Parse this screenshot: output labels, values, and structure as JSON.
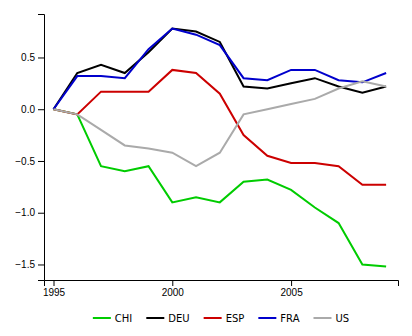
{
  "chart_data": {
    "type": "line",
    "x": [
      1995,
      1996,
      1997,
      1998,
      1999,
      2000,
      2001,
      2002,
      2003,
      2004,
      2005,
      2006,
      2007,
      2008,
      2009
    ],
    "series": [
      {
        "name": "CHI",
        "color": "#00CC00",
        "line_style": "solid",
        "values": [
          0.0,
          -0.05,
          -0.55,
          -0.6,
          -0.55,
          -0.9,
          -0.85,
          -0.9,
          -0.7,
          -0.68,
          -0.78,
          -0.95,
          -1.1,
          -1.5,
          -1.52
        ]
      },
      {
        "name": "DEU",
        "color": "#000000",
        "line_style": "solid",
        "values": [
          0.0,
          0.35,
          0.43,
          0.35,
          0.55,
          0.78,
          0.75,
          0.65,
          0.22,
          0.2,
          0.25,
          0.3,
          0.22,
          0.16,
          0.22
        ]
      },
      {
        "name": "ESP",
        "color": "#CC0000",
        "line_style": "solid",
        "values": [
          0.0,
          -0.05,
          0.17,
          0.17,
          0.17,
          0.38,
          0.35,
          0.15,
          -0.25,
          -0.45,
          -0.52,
          -0.52,
          -0.55,
          -0.73,
          -0.73
        ]
      },
      {
        "name": "FRA",
        "color": "#0000CC",
        "line_style": "solid",
        "values": [
          0.0,
          0.32,
          0.32,
          0.3,
          0.58,
          0.78,
          0.72,
          0.62,
          0.3,
          0.28,
          0.38,
          0.38,
          0.28,
          0.26,
          0.35
        ]
      },
      {
        "name": "US",
        "color": "#AAAAAA",
        "line_style": "solid",
        "values": [
          0.0,
          -0.05,
          -0.2,
          -0.35,
          -0.38,
          -0.42,
          -0.55,
          -0.42,
          -0.05,
          0.0,
          0.05,
          0.1,
          0.2,
          0.27,
          0.22
        ]
      }
    ],
    "xlim": [
      1994.6,
      2009.5
    ],
    "xticks": [
      1995,
      2000,
      2005
    ],
    "ylim": [
      -1.65,
      0.92
    ],
    "yticks": [
      {
        "value": -1.5,
        "label": "−1.5"
      },
      {
        "value": -1.0,
        "label": "−1.0"
      },
      {
        "value": -0.5,
        "label": "−0.5"
      },
      {
        "value": 0.0,
        "label": "0.0"
      },
      {
        "value": 0.5,
        "label": "0.5"
      }
    ],
    "grid": false,
    "legend": "bottom"
  }
}
